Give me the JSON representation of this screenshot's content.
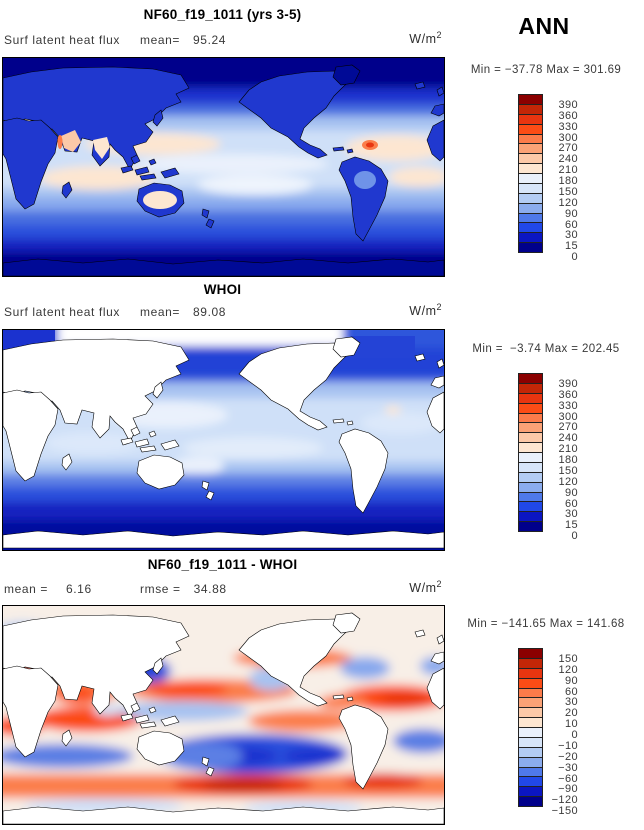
{
  "figure": {
    "season": "ANN",
    "background": "#ffffff"
  },
  "panels": [
    {
      "title": "NF60_f19_1011 (yrs 3-5)",
      "var_label": "Surf latent heat flux",
      "stat_label": "mean=",
      "stat_value": "95.24",
      "units_base": "W/m",
      "units_exp": "2",
      "minmax": "Min = −37.78 Max = 301.69",
      "colorbar": "flux"
    },
    {
      "title": "WHOI",
      "var_label": "Surf latent heat flux",
      "stat_label": "mean=",
      "stat_value": "89.08",
      "units_base": "W/m",
      "units_exp": "2",
      "minmax": "Min =  −3.74 Max = 202.45",
      "colorbar": "flux"
    },
    {
      "title": "NF60_f19_1011 - WHOI",
      "stat_label": "mean =",
      "stat_value": "6.16",
      "stat2_label": "rmse =",
      "stat2_value": "34.88",
      "units_base": "W/m",
      "units_exp": "2",
      "minmax": "Min = −141.65 Max = 141.68",
      "colorbar": "diff"
    }
  ],
  "colorbars": {
    "palette_top_to_bottom": [
      "#8b0000",
      "#c32607",
      "#e83510",
      "#fc4c16",
      "#fc7b4a",
      "#fba276",
      "#fcc9a8",
      "#fde6d1",
      "#e9f0fb",
      "#d7e5f9",
      "#b3ccf4",
      "#8bacee",
      "#4f79ea",
      "#2148e8",
      "#0b16c2",
      "#00008b"
    ],
    "flux": {
      "labels": [
        "390",
        "360",
        "330",
        "300",
        "270",
        "240",
        "210",
        "180",
        "150",
        "120",
        "90",
        "60",
        "30",
        "15",
        "0"
      ]
    },
    "diff": {
      "labels": [
        "150",
        "120",
        "90",
        "60",
        "30",
        "20",
        "10",
        "0",
        "−10",
        "−20",
        "−30",
        "−60",
        "−90",
        "−120",
        "−150"
      ]
    }
  },
  "chart_data": [
    {
      "type": "heatmap",
      "title": "NF60_f19_1011 (yrs 3-5)",
      "variable": "Surf latent heat flux",
      "season": "ANN",
      "units": "W/m^2",
      "mean": 95.24,
      "min": -37.78,
      "max": 301.69,
      "colorbar_levels": [
        0,
        15,
        30,
        60,
        90,
        120,
        150,
        180,
        210,
        240,
        270,
        300,
        330,
        360,
        390
      ],
      "projection": "global lat-lon map, Pacific-centered (0-360E), no axis ticks",
      "legend_position": "right vertical labelbar"
    },
    {
      "type": "heatmap",
      "title": "WHOI",
      "variable": "Surf latent heat flux (observations, ocean only; land masked white)",
      "season": "ANN",
      "units": "W/m^2",
      "mean": 89.08,
      "min": -3.74,
      "max": 202.45,
      "colorbar_levels": [
        0,
        15,
        30,
        60,
        90,
        120,
        150,
        180,
        210,
        240,
        270,
        300,
        330,
        360,
        390
      ],
      "projection": "global lat-lon map, Pacific-centered (0-360E), no axis ticks",
      "legend_position": "right vertical labelbar"
    },
    {
      "type": "heatmap",
      "title": "NF60_f19_1011 - WHOI",
      "variable": "Surf latent heat flux difference (model minus obs; land masked white)",
      "season": "ANN",
      "units": "W/m^2",
      "mean": 6.16,
      "rmse": 34.88,
      "min": -141.65,
      "max": 141.68,
      "colorbar_levels": [
        -150,
        -120,
        -90,
        -60,
        -30,
        -20,
        -10,
        0,
        10,
        20,
        30,
        60,
        90,
        120,
        150
      ],
      "projection": "global lat-lon map, Pacific-centered (0-360E), no axis ticks",
      "legend_position": "right vertical labelbar"
    }
  ]
}
